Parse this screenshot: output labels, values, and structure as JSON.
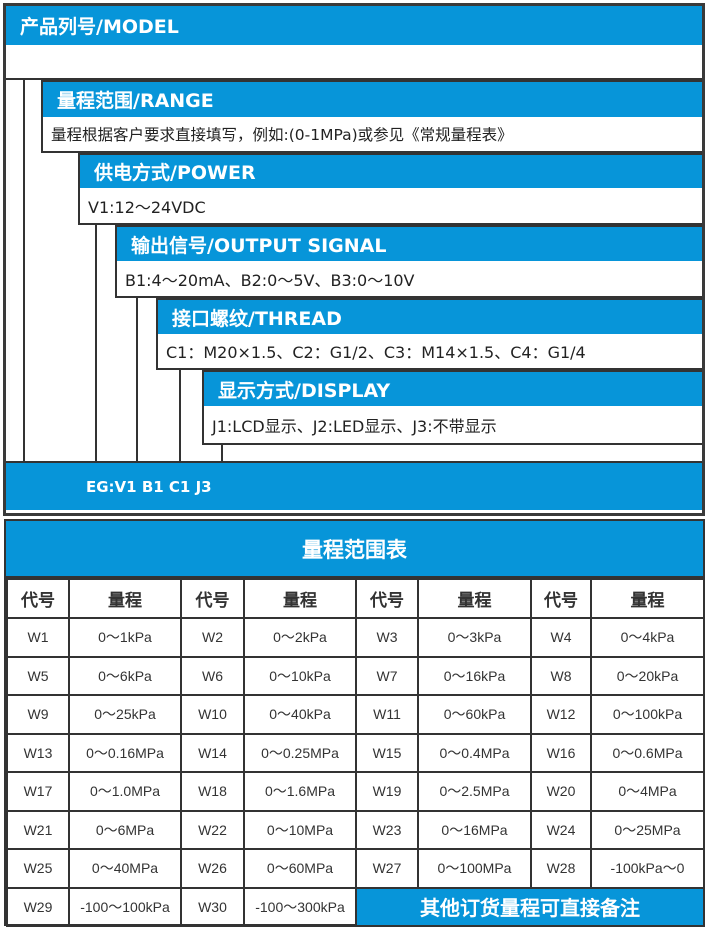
{
  "model": {
    "header": "产品列号/MODEL"
  },
  "sections": [
    {
      "header": "量程范围/RANGE",
      "text": "量程根据客户要求直接填写，例如:(0-1MPa)或参见《常规量程表》"
    },
    {
      "header": "供电方式/POWER",
      "text": "V1:12～24VDC"
    },
    {
      "header": "输出信号/OUTPUT SIGNAL",
      "text": "B1:4～20mA、B2:0～5V、B3:0～10V"
    },
    {
      "header": "接口螺纹/THREAD",
      "text": "C1：M20×1.5、C2：G1/2、C3：M14×1.5、C4：G1/4"
    },
    {
      "header": "显示方式/DISPLAY",
      "text": "J1:LCD显示、J2:LED显示、J3:不带显示"
    }
  ],
  "example": "EG:V1 B1 C1 J3",
  "range_table": {
    "title": "量程范围表",
    "headers": [
      "代号",
      "量程",
      "代号",
      "量程",
      "代号",
      "量程",
      "代号",
      "量程"
    ],
    "rows": [
      [
        "W1",
        "0～1kPa",
        "W2",
        "0～2kPa",
        "W3",
        "0～3kPa",
        "W4",
        "0～4kPa"
      ],
      [
        "W5",
        "0～6kPa",
        "W6",
        "0～10kPa",
        "W7",
        "0～16kPa",
        "W8",
        "0～20kPa"
      ],
      [
        "W9",
        "0～25kPa",
        "W10",
        "0～40kPa",
        "W11",
        "0～60kPa",
        "W12",
        "0～100kPa"
      ],
      [
        "W13",
        "0～0.16MPa",
        "W14",
        "0～0.25MPa",
        "W15",
        "0～0.4MPa",
        "W16",
        "0～0.6MPa"
      ],
      [
        "W17",
        "0～1.0MPa",
        "W18",
        "0～1.6MPa",
        "W19",
        "0～2.5MPa",
        "W20",
        "0～4MPa"
      ],
      [
        "W21",
        "0～6MPa",
        "W22",
        "0～10MPa",
        "W23",
        "0～16MPa",
        "W24",
        "0～25MPa"
      ],
      [
        "W25",
        "0～40MPa",
        "W26",
        "0～60MPa",
        "W27",
        "0～100MPa",
        "W28",
        "-100kPa～0"
      ],
      [
        "W29",
        "-100～100kPa",
        "W30",
        "-100～300kPa"
      ]
    ],
    "note": "其他订货量程可直接备注"
  },
  "colors": {
    "accent": "#0795d9",
    "border": "#333333"
  }
}
